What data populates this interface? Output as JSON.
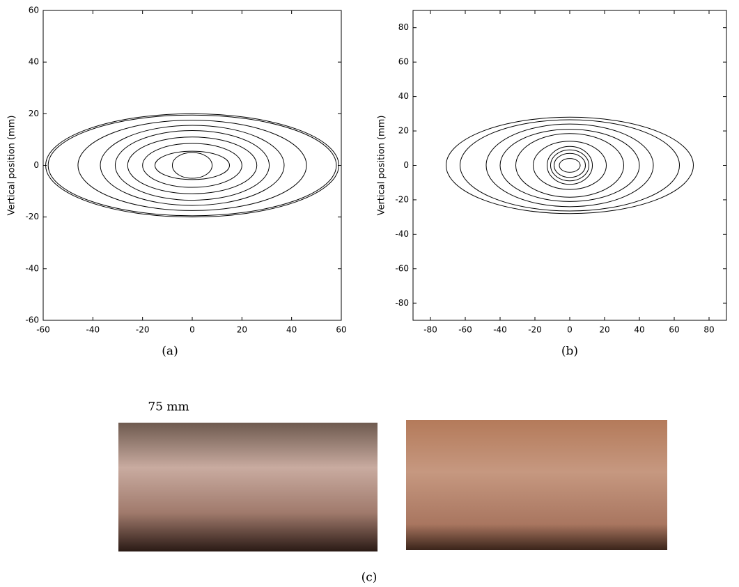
{
  "chart_data": [
    {
      "type": "ellipse",
      "caption": "(a)",
      "ylabel": "Vertical position (mm)",
      "xlim": [
        -60,
        60
      ],
      "ylim": [
        -60,
        60
      ],
      "xticks": [
        -60,
        -40,
        -20,
        0,
        20,
        40,
        60
      ],
      "yticks": [
        -60,
        -40,
        -20,
        0,
        20,
        40,
        60
      ],
      "color": "#000000",
      "ellipses": [
        {
          "a": 59,
          "b": 20
        },
        {
          "a": 58,
          "b": 19.5
        },
        {
          "a": 46,
          "b": 17.5
        },
        {
          "a": 37,
          "b": 15.5
        },
        {
          "a": 31,
          "b": 13.5
        },
        {
          "a": 26,
          "b": 11
        },
        {
          "a": 20,
          "b": 8.5
        },
        {
          "a": 15,
          "b": 5.5
        },
        {
          "a": 8,
          "b": 5
        }
      ]
    },
    {
      "type": "ellipse",
      "caption": "(b)",
      "ylabel": "Vertical position (mm)",
      "xlim": [
        -90,
        90
      ],
      "ylim": [
        -90,
        90
      ],
      "xticks": [
        -80,
        -60,
        -40,
        -20,
        0,
        20,
        40,
        60,
        80
      ],
      "yticks": [
        -80,
        -60,
        -40,
        -20,
        0,
        20,
        40,
        60,
        80
      ],
      "color": "#000000",
      "ellipses": [
        {
          "a": 71,
          "b": 28
        },
        {
          "a": 63,
          "b": 26.5
        },
        {
          "a": 48,
          "b": 24
        },
        {
          "a": 40,
          "b": 21
        },
        {
          "a": 31,
          "b": 18.5
        },
        {
          "a": 21,
          "b": 14
        },
        {
          "a": 13,
          "b": 11
        },
        {
          "a": 11,
          "b": 9
        },
        {
          "a": 9,
          "b": 7
        },
        {
          "a": 6,
          "b": 4
        }
      ]
    }
  ],
  "figure": {
    "scale_bar": "75 mm",
    "caption": "(c)"
  }
}
